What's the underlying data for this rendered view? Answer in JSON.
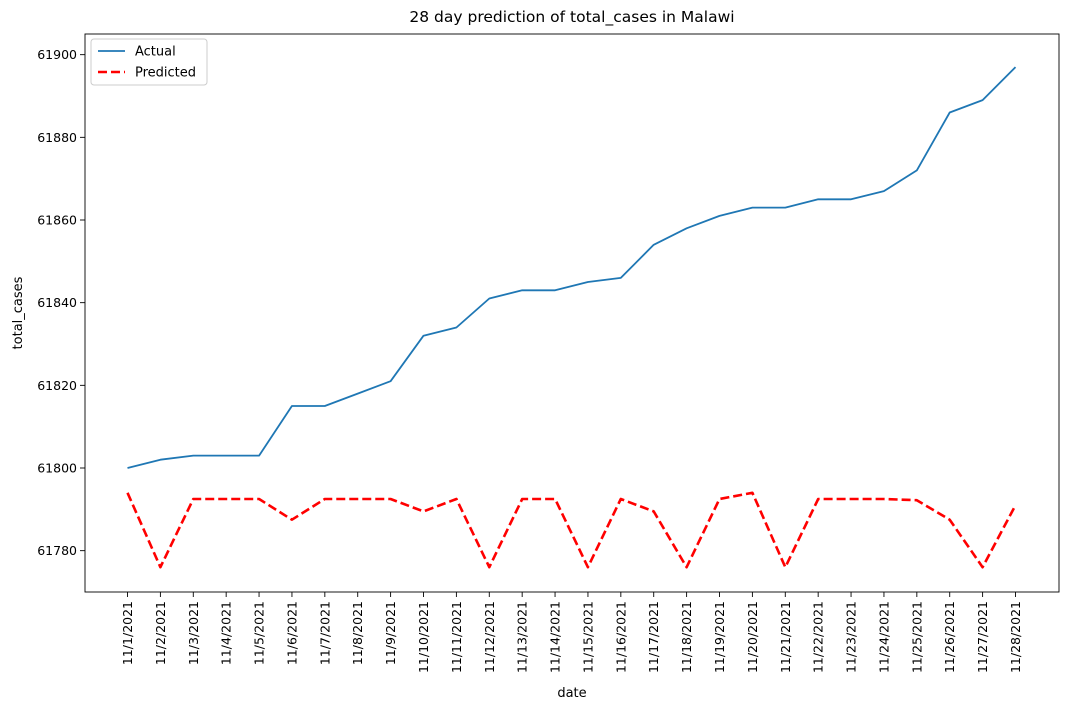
{
  "chart_data": {
    "type": "line",
    "title": "28 day prediction of total_cases in Malawi",
    "xlabel": "date",
    "ylabel": "total_cases",
    "categories": [
      "11/1/2021",
      "11/2/2021",
      "11/3/2021",
      "11/4/2021",
      "11/5/2021",
      "11/6/2021",
      "11/7/2021",
      "11/8/2021",
      "11/9/2021",
      "11/10/2021",
      "11/11/2021",
      "11/12/2021",
      "11/13/2021",
      "11/14/2021",
      "11/15/2021",
      "11/16/2021",
      "11/17/2021",
      "11/18/2021",
      "11/19/2021",
      "11/20/2021",
      "11/21/2021",
      "11/22/2021",
      "11/23/2021",
      "11/24/2021",
      "11/25/2021",
      "11/26/2021",
      "11/27/2021",
      "11/28/2021"
    ],
    "yticks": [
      61780,
      61800,
      61820,
      61840,
      61860,
      61880,
      61900
    ],
    "ylim": [
      61770,
      61905
    ],
    "grid": false,
    "legend_position": "top-left",
    "series": [
      {
        "name": "Actual",
        "color": "#1f77b4",
        "style": "solid",
        "values": [
          61800,
          61802,
          61803,
          61803,
          61803,
          61815,
          61815,
          61818,
          61821,
          61832,
          61834,
          61841,
          61843,
          61843,
          61845,
          61846,
          61854,
          61858,
          61861,
          61863,
          61863,
          61865,
          61865,
          61867,
          61872,
          61886,
          61889,
          61897
        ]
      },
      {
        "name": "Predicted",
        "color": "#ff0000",
        "style": "dashed",
        "values": [
          61794,
          61776,
          61792.5,
          61792.5,
          61792.5,
          61787.5,
          61792.5,
          61792.5,
          61792.5,
          61789.5,
          61792.5,
          61776,
          61792.5,
          61792.5,
          61776,
          61792.5,
          61789.5,
          61776,
          61792.5,
          61794,
          61776,
          61792.5,
          61792.5,
          61792.5,
          61792.2,
          61787.5,
          61776,
          61791
        ]
      }
    ]
  }
}
